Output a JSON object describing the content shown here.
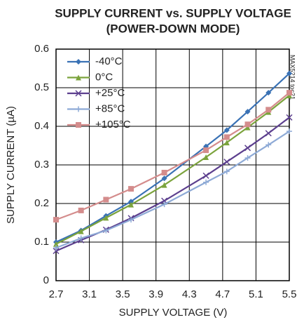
{
  "chart_data": {
    "type": "line",
    "title": "SUPPLY CURRENT vs. SUPPLY VOLTAGE",
    "subtitle": "(POWER-DOWN MODE)",
    "x_label": "SUPPLY VOLTAGE (V)",
    "y_label": "SUPPLY CURRENT (µA)",
    "annotation": "MAX5214 toc21",
    "x": [
      2.7,
      3.0,
      3.3,
      3.6,
      4.0,
      4.5,
      4.75,
      5.0,
      5.25,
      5.5
    ],
    "series": [
      {
        "name": "-40°C",
        "color": "#3a72b5",
        "values": [
          0.1,
          0.13,
          0.168,
          0.205,
          0.265,
          0.348,
          0.39,
          0.438,
          0.487,
          0.537
        ]
      },
      {
        "name": "0°C",
        "color": "#7ba33c",
        "values": [
          0.095,
          0.128,
          0.163,
          0.197,
          0.248,
          0.32,
          0.358,
          0.397,
          0.437,
          0.48
        ]
      },
      {
        "name": "+25°C",
        "color": "#5c3f8e",
        "values": [
          0.077,
          0.105,
          0.132,
          0.162,
          0.207,
          0.272,
          0.308,
          0.344,
          0.382,
          0.423
        ]
      },
      {
        "name": "+85°C",
        "color": "#8eaad6",
        "values": [
          0.085,
          0.11,
          0.13,
          0.158,
          0.198,
          0.255,
          0.283,
          0.318,
          0.352,
          0.387
        ]
      },
      {
        "name": "+105°C",
        "color": "#d48c8c",
        "values": [
          0.158,
          0.182,
          0.21,
          0.238,
          0.28,
          0.338,
          0.372,
          0.405,
          0.443,
          0.487
        ]
      }
    ],
    "xlim": [
      2.7,
      5.5
    ],
    "xticks": [
      2.7,
      3.1,
      3.5,
      3.9,
      4.3,
      4.7,
      5.1,
      5.5
    ],
    "ylim": [
      0,
      0.6
    ],
    "yticks": [
      0,
      0.1,
      0.2,
      0.3,
      0.4,
      0.5,
      0.6
    ],
    "grid": true,
    "legend": "upper-left"
  }
}
